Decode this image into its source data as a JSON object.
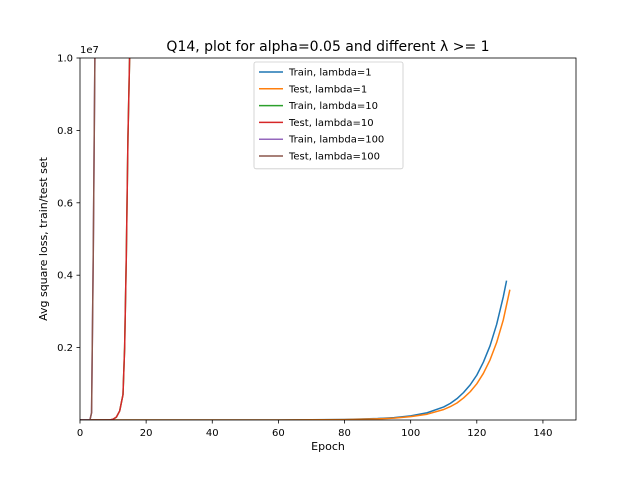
{
  "chart_data": {
    "type": "line",
    "title": "Q14, plot for alpha=0.05 and different λ >= 1",
    "xlabel": "Epoch",
    "ylabel": "Avg square loss, train/test set",
    "y_offset_label": "1e7",
    "xlim": [
      0,
      150
    ],
    "ylim": [
      0,
      1.0
    ],
    "xticks": [
      0,
      20,
      40,
      60,
      80,
      100,
      120,
      140
    ],
    "yticks": [
      0.2,
      0.4,
      0.6,
      0.8,
      1.0
    ],
    "ytick_labels": [
      "0.2",
      "0.4",
      "0.6",
      "0.8",
      "1.0"
    ],
    "legend_position": "upper center",
    "grid": false,
    "series": [
      {
        "name": "Train, lambda=1",
        "color": "#1f77b4",
        "x": [
          0,
          60,
          80,
          90,
          95,
          100,
          105,
          110,
          112,
          114,
          116,
          118,
          120,
          122,
          124,
          126,
          128,
          129
        ],
        "y": [
          0,
          0,
          0.0015,
          0.004,
          0.0065,
          0.0115,
          0.02,
          0.036,
          0.046,
          0.059,
          0.076,
          0.097,
          0.124,
          0.16,
          0.205,
          0.264,
          0.34,
          0.385
        ]
      },
      {
        "name": "Test, lambda=1",
        "color": "#ff7f0e",
        "x": [
          0,
          60,
          80,
          90,
          95,
          100,
          105,
          110,
          112,
          114,
          116,
          118,
          120,
          122,
          124,
          126,
          128,
          130
        ],
        "y": [
          0,
          0,
          0.0012,
          0.0032,
          0.0052,
          0.0092,
          0.016,
          0.029,
          0.037,
          0.047,
          0.061,
          0.078,
          0.1,
          0.129,
          0.166,
          0.214,
          0.276,
          0.36
        ]
      },
      {
        "name": "Train, lambda=10",
        "color": "#2ca02c",
        "x": [
          0,
          9,
          10,
          11,
          12,
          13,
          13.5,
          14,
          14.5,
          15
        ],
        "y": [
          0,
          0,
          0.002,
          0.008,
          0.025,
          0.07,
          0.2,
          0.45,
          0.78,
          1.0
        ]
      },
      {
        "name": "Test, lambda=10",
        "color": "#d62728",
        "x": [
          0,
          9,
          10,
          11,
          12,
          13,
          13.5,
          14,
          14.5,
          15
        ],
        "y": [
          0,
          0,
          0.002,
          0.008,
          0.025,
          0.07,
          0.2,
          0.45,
          0.78,
          1.0
        ]
      },
      {
        "name": "Train, lambda=100",
        "color": "#9467bd",
        "x": [
          0,
          3,
          3.5,
          4,
          4.5
        ],
        "y": [
          0,
          0,
          0.02,
          0.45,
          1.0
        ]
      },
      {
        "name": "Test, lambda=100",
        "color": "#8c564b",
        "x": [
          0,
          3,
          3.5,
          4,
          4.5
        ],
        "y": [
          0,
          0,
          0.02,
          0.45,
          1.0
        ]
      }
    ]
  }
}
